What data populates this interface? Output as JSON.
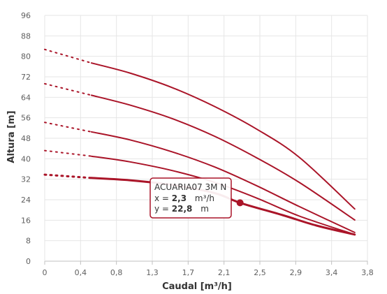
{
  "chart_data": {
    "type": "line",
    "xlabel": "Caudal [m³/h]",
    "ylabel": "Altura [m]",
    "xlim": [
      0,
      3.8
    ],
    "ylim": [
      0,
      96
    ],
    "x_ticks": [
      "0",
      "0,4",
      "0,8",
      "1,3",
      "1,7",
      "2,1",
      "2,5",
      "2,9",
      "3,4",
      "3,8"
    ],
    "y_ticks": [
      "0",
      "8",
      "16",
      "24",
      "32",
      "40",
      "48",
      "56",
      "64",
      "72",
      "80",
      "88",
      "96"
    ],
    "grid": true,
    "line_color": "#aa1428",
    "series": [
      {
        "name": "ACUARIA07 3M N",
        "highlight": true,
        "dotted": [
          [
            0,
            33.8
          ],
          [
            0.55,
            32.5
          ]
        ],
        "solid": [
          [
            0.55,
            32.5
          ],
          [
            1.0,
            31.6
          ],
          [
            1.5,
            29.8
          ],
          [
            2.0,
            26.6
          ],
          [
            2.3,
            22.8
          ],
          [
            2.8,
            18.0
          ],
          [
            3.2,
            13.9
          ],
          [
            3.65,
            10.4
          ]
        ]
      },
      {
        "dotted": [
          [
            0,
            43.2
          ],
          [
            0.55,
            41.0
          ]
        ],
        "solid": [
          [
            0.55,
            41.0
          ],
          [
            1.0,
            38.8
          ],
          [
            1.5,
            35.4
          ],
          [
            2.0,
            30.8
          ],
          [
            2.5,
            24.6
          ],
          [
            3.0,
            17.6
          ],
          [
            3.65,
            10.4
          ]
        ]
      },
      {
        "dotted": [
          [
            0,
            54.2
          ],
          [
            0.55,
            50.5
          ]
        ],
        "solid": [
          [
            0.55,
            50.5
          ],
          [
            1.0,
            47.4
          ],
          [
            1.5,
            42.7
          ],
          [
            2.0,
            36.8
          ],
          [
            2.5,
            29.4
          ],
          [
            3.0,
            21.3
          ],
          [
            3.65,
            11.2
          ]
        ]
      },
      {
        "dotted": [
          [
            0,
            69.3
          ],
          [
            0.55,
            64.8
          ]
        ],
        "solid": [
          [
            0.55,
            64.8
          ],
          [
            1.0,
            61.0
          ],
          [
            1.5,
            55.7
          ],
          [
            2.0,
            48.8
          ],
          [
            2.5,
            40.3
          ],
          [
            3.0,
            30.7
          ],
          [
            3.65,
            16.1
          ]
        ]
      },
      {
        "dotted": [
          [
            0,
            82.7
          ],
          [
            0.55,
            77.4
          ]
        ],
        "solid": [
          [
            0.55,
            77.4
          ],
          [
            1.0,
            73.5
          ],
          [
            1.5,
            67.8
          ],
          [
            2.0,
            60.4
          ],
          [
            2.5,
            51.5
          ],
          [
            3.0,
            40.5
          ],
          [
            3.65,
            20.4
          ]
        ]
      }
    ],
    "marker": {
      "x": 2.3,
      "y": 22.8
    },
    "tooltip": {
      "title": "ACUARIA07 3M N",
      "x_prefix": "x = ",
      "x_value": "2,3",
      "x_unit": "m³/h",
      "y_prefix": "y = ",
      "y_value": "22,8",
      "y_unit": "m"
    }
  }
}
